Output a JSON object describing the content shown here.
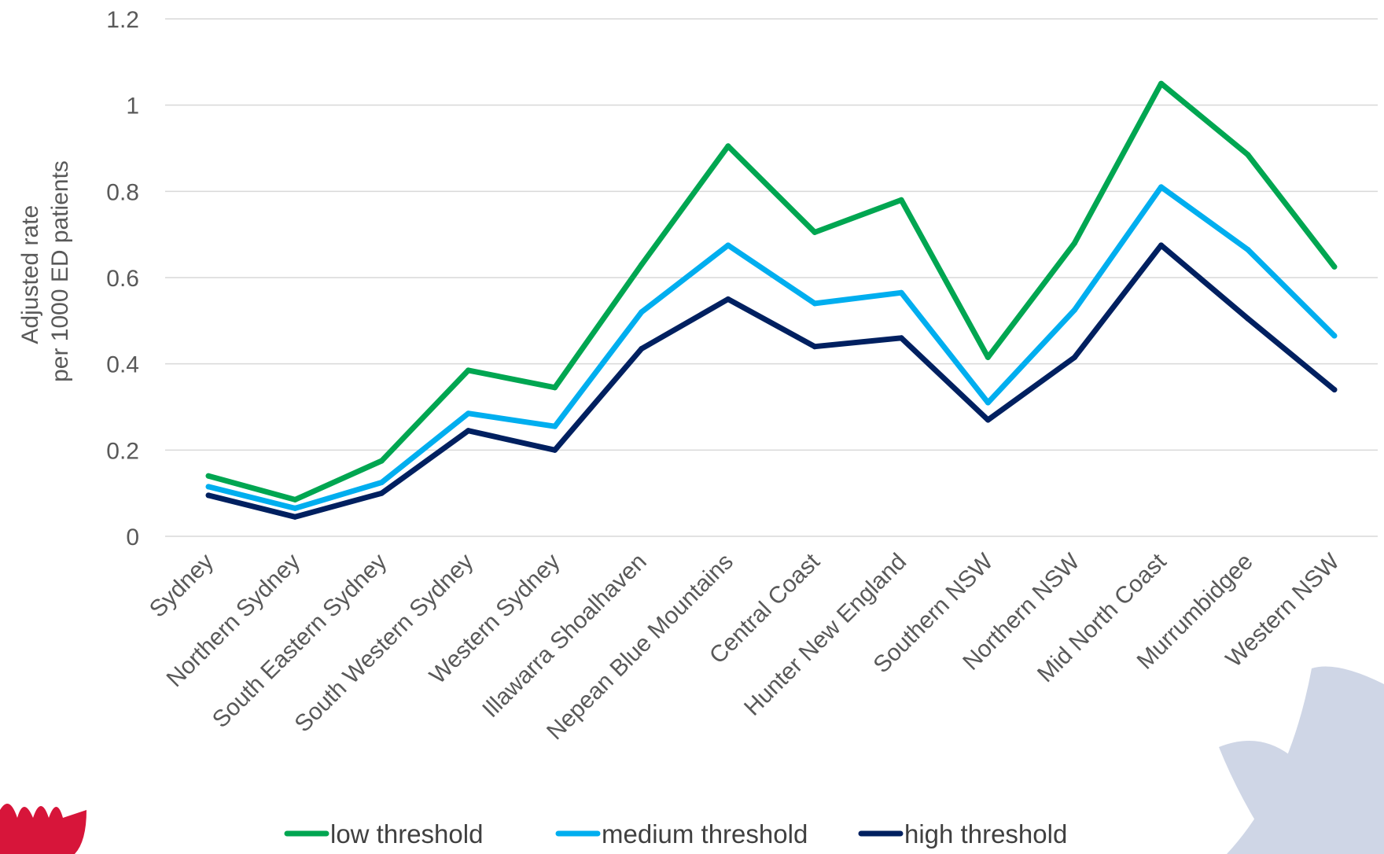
{
  "chart_data": {
    "type": "line",
    "title": "",
    "ylabel": [
      "Adjusted rate",
      "per 1000 ED patients"
    ],
    "xlabel": "",
    "ylim": [
      0,
      1.2
    ],
    "yticks": [
      "0",
      "0.2",
      "0.4",
      "0.6",
      "0.8",
      "1",
      "1.2"
    ],
    "grid": true,
    "legend_position": "bottom",
    "categories": [
      "Sydney",
      "Northern Sydney",
      "South Eastern Sydney",
      "South Western Sydney",
      "Western Sydney",
      "Illawarra Shoalhaven",
      "Nepean Blue Mountains",
      "Central Coast",
      "Hunter New England",
      "Southern NSW",
      "Northern NSW",
      "Mid North Coast",
      "Murrumbidgee",
      "Western NSW"
    ],
    "series": [
      {
        "name": "low threshold",
        "color": "#00a651",
        "values": [
          0.14,
          0.085,
          0.175,
          0.385,
          0.345,
          0.63,
          0.905,
          0.705,
          0.78,
          0.415,
          0.68,
          1.05,
          0.885,
          0.625
        ]
      },
      {
        "name": "medium threshold",
        "color": "#00aeef",
        "values": [
          0.115,
          0.065,
          0.125,
          0.285,
          0.255,
          0.52,
          0.675,
          0.54,
          0.565,
          0.31,
          0.525,
          0.81,
          0.665,
          0.465
        ]
      },
      {
        "name": "high threshold",
        "color": "#002060",
        "values": [
          0.095,
          0.045,
          0.1,
          0.245,
          0.2,
          0.435,
          0.55,
          0.44,
          0.46,
          0.27,
          0.415,
          0.675,
          0.505,
          0.34
        ]
      }
    ]
  }
}
